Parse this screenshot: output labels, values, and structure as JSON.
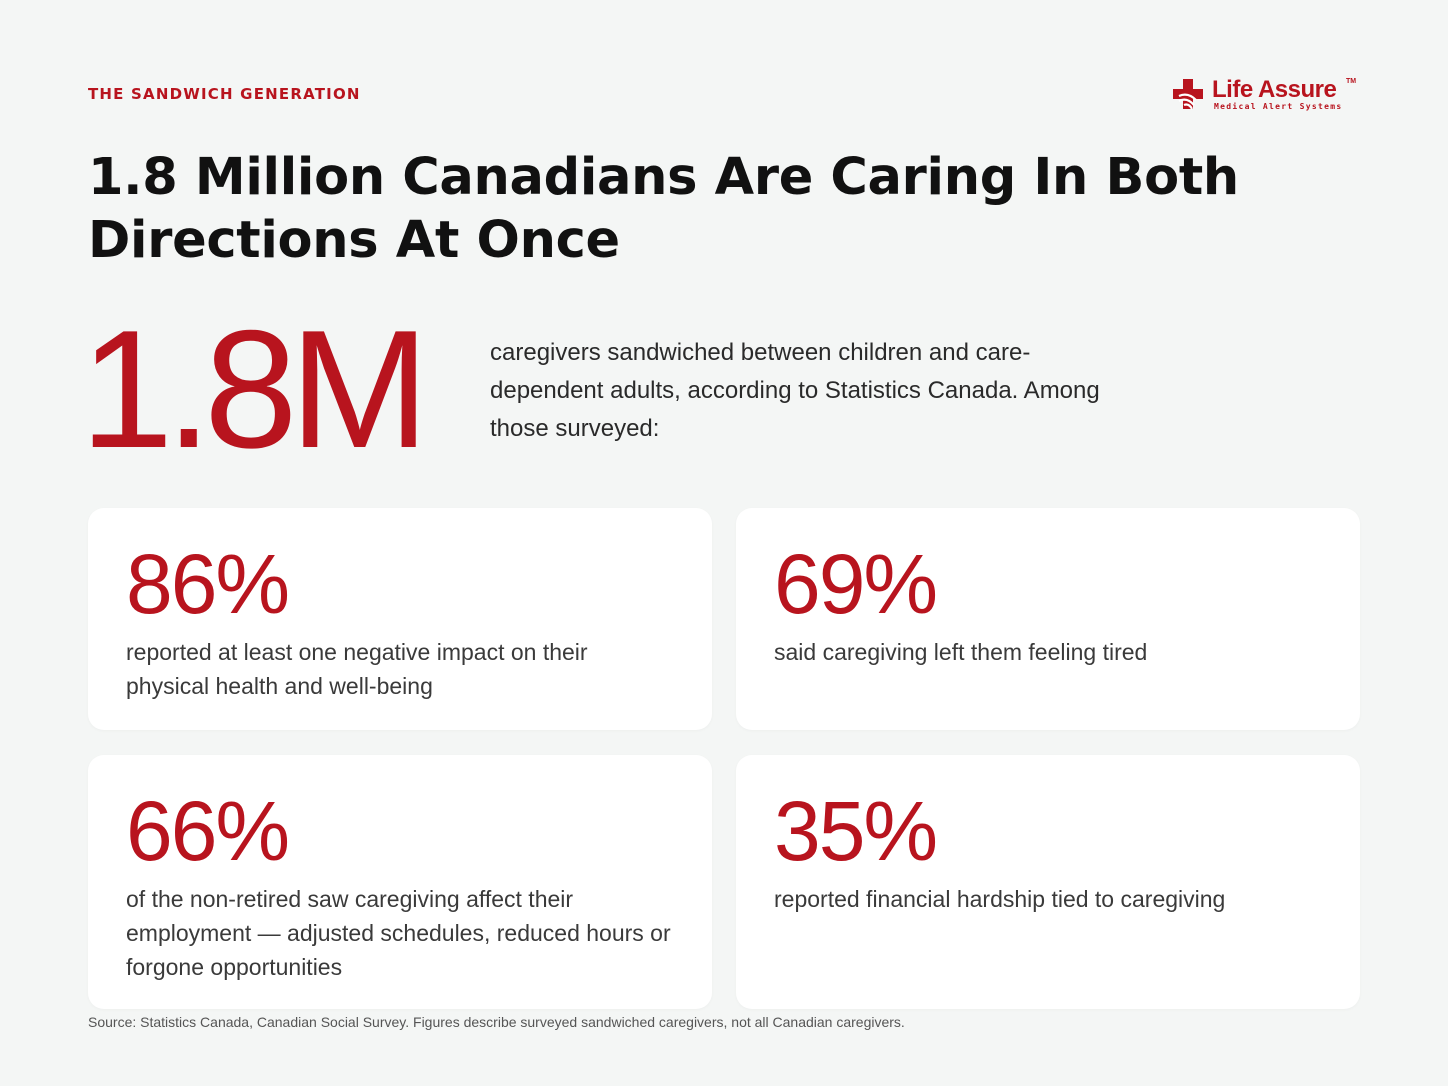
{
  "eyebrow": "THE SANDWICH GENERATION",
  "logo": {
    "name": "Life Assure",
    "trademark": "TM",
    "tagline": "Medical Alert Systems",
    "icon": "medical-cross-icon"
  },
  "headline": "1.8 Million Canadians Are Caring In Both Directions At Once",
  "hero": {
    "stat": "1.8M",
    "description": "caregivers sandwiched between children and care-dependent adults, according to Statistics Canada. Among those surveyed:"
  },
  "stats": [
    {
      "value": "86%",
      "description": "reported at least one negative impact on their physical health and well-being"
    },
    {
      "value": "69%",
      "description": "said caregiving left them feeling tired"
    },
    {
      "value": "66%",
      "description": "of the non-retired saw caregiving affect their employment — adjusted schedules, reduced hours or forgone opportunities"
    },
    {
      "value": "35%",
      "description": "reported financial hardship tied to caregiving"
    }
  ],
  "source": "Source: Statistics Canada, Canadian Social Survey. Figures describe surveyed sandwiched caregivers, not all Canadian caregivers.",
  "colors": {
    "accent": "#b8141e",
    "background": "#f4f6f5",
    "card": "#ffffff",
    "text": "#111111"
  }
}
